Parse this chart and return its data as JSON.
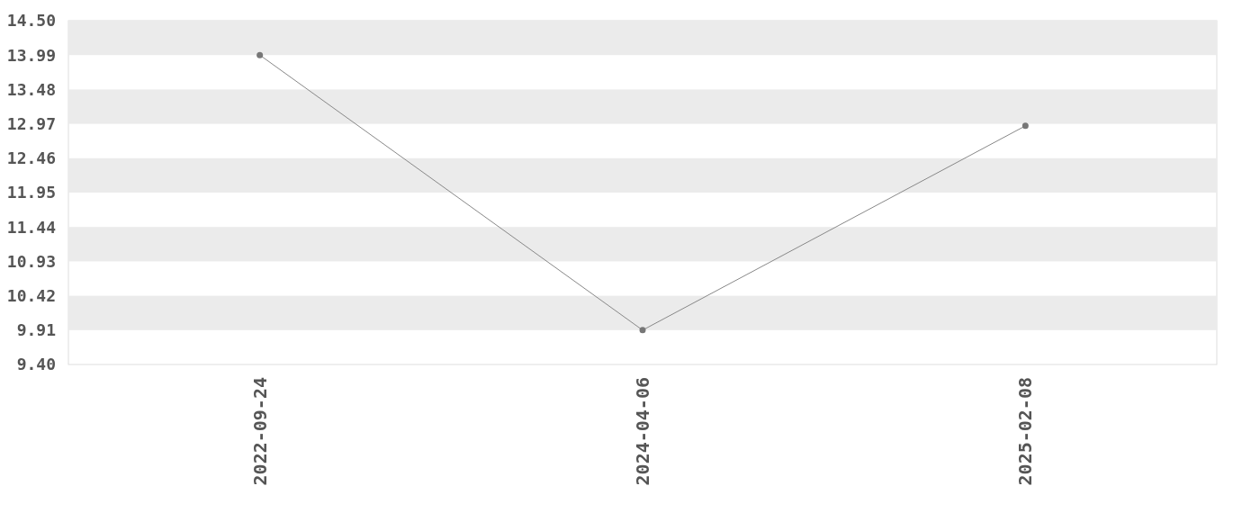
{
  "chart_data": {
    "type": "line",
    "categories": [
      "2022-09-24",
      "2024-04-06",
      "2025-02-08"
    ],
    "series": [
      {
        "color": "#888888",
        "values": [
          13.99,
          9.91,
          12.94
        ]
      }
    ],
    "ylim": [
      9.4,
      14.5
    ],
    "yticks": [
      {
        "value": 9.4,
        "label": "9.40"
      },
      9.91,
      10.42,
      10.93,
      11.44,
      11.95,
      12.46,
      12.97,
      13.48,
      13.99,
      {
        "value": 14.5,
        "label": "14.50"
      }
    ],
    "bands": [
      {
        "axis": "y",
        "from": 9.91,
        "to": 10.42,
        "color": "#ebebeb"
      },
      {
        "axis": "y",
        "from": 10.93,
        "to": 11.44,
        "color": "#ebebeb"
      },
      {
        "axis": "y",
        "from": 11.95,
        "to": 12.46,
        "color": "#ebebeb"
      },
      {
        "axis": "y",
        "from": 12.97,
        "to": 13.48,
        "color": "#ebebeb"
      },
      {
        "axis": "y",
        "from": 13.99,
        "to": 14.5,
        "color": "#ebebeb"
      }
    ],
    "marker": "circle",
    "line_style": "solid"
  }
}
